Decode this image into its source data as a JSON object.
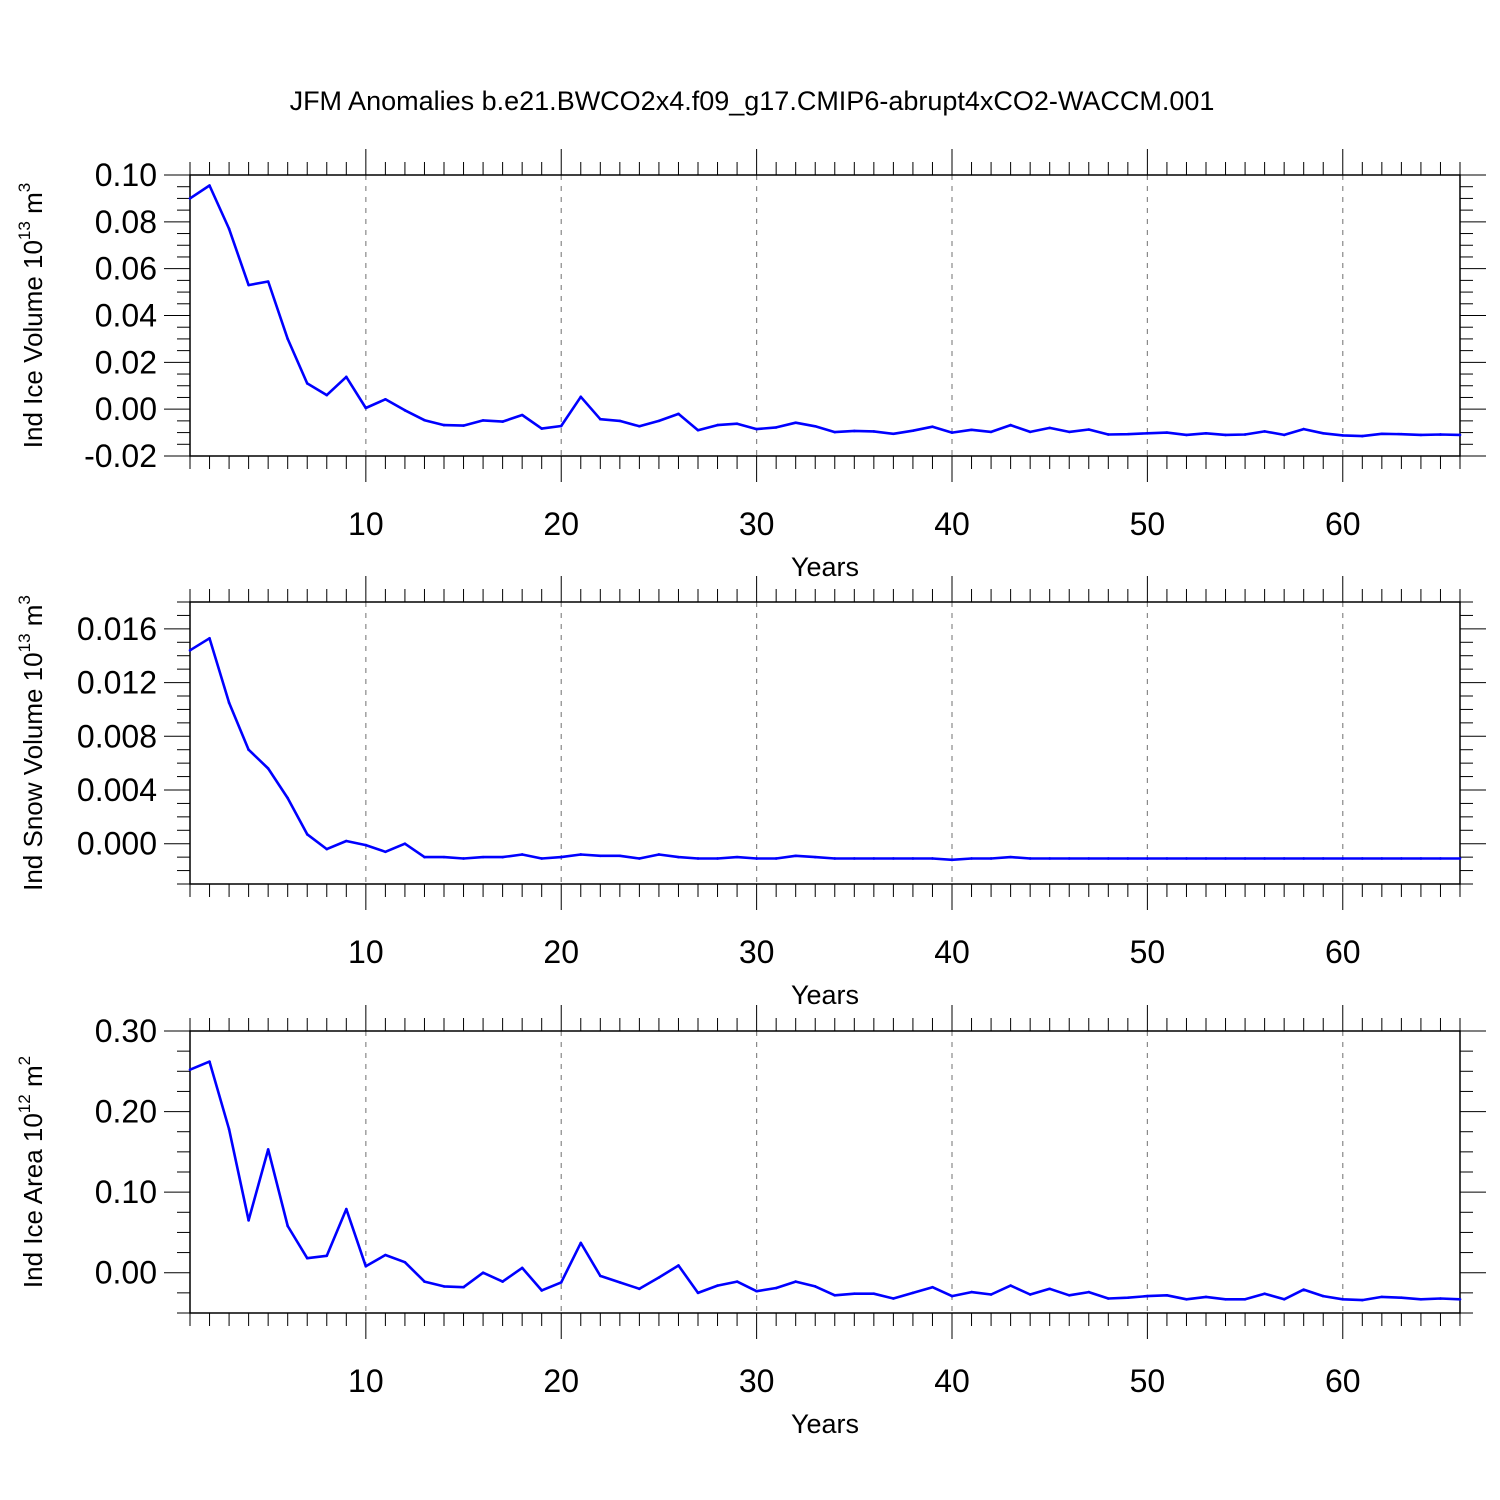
{
  "title": "JFM Anomalies b.e21.BWCO2x4.f09_g17.CMIP6-abrupt4xCO2-WACCM.001",
  "chart_data": [
    {
      "type": "line",
      "title": "",
      "xlabel": "Years",
      "ylabel": {
        "prefix": "Ind Ice Volume 10",
        "exp": "13",
        "unit": " m",
        "unit_exp": "3"
      },
      "xlim": [
        1,
        66
      ],
      "ylim": [
        -0.02,
        0.1
      ],
      "xticks": [
        10,
        20,
        30,
        40,
        50,
        60
      ],
      "yticks": [
        -0.02,
        0.0,
        0.02,
        0.04,
        0.06,
        0.08,
        0.1
      ],
      "ytick_labels": [
        "-0.02",
        "0.00",
        "0.02",
        "0.04",
        "0.06",
        "0.08",
        "0.10"
      ],
      "ytick_minor_step": 0.005,
      "grid": "vertical dashed",
      "line_color": "#0000ff",
      "x_start": 1,
      "values": [
        0.09,
        0.0955,
        0.077,
        0.053,
        0.0545,
        0.03,
        0.011,
        0.006,
        0.0138,
        0.0005,
        0.0042,
        -0.0005,
        -0.0047,
        -0.0068,
        -0.007,
        -0.0048,
        -0.0053,
        -0.0025,
        -0.0083,
        -0.0072,
        0.0053,
        -0.0043,
        -0.005,
        -0.0073,
        -0.005,
        -0.002,
        -0.009,
        -0.0068,
        -0.0062,
        -0.0085,
        -0.0078,
        -0.0058,
        -0.0073,
        -0.0098,
        -0.0093,
        -0.0095,
        -0.0105,
        -0.0092,
        -0.0075,
        -0.01,
        -0.0088,
        -0.0097,
        -0.0068,
        -0.0097,
        -0.008,
        -0.0097,
        -0.0087,
        -0.0108,
        -0.0107,
        -0.0103,
        -0.01,
        -0.011,
        -0.0103,
        -0.011,
        -0.0108,
        -0.0095,
        -0.011,
        -0.0085,
        -0.0103,
        -0.0112,
        -0.0115,
        -0.0105,
        -0.0107,
        -0.011,
        -0.0108,
        -0.011
      ]
    },
    {
      "type": "line",
      "title": "",
      "xlabel": "Years",
      "ylabel": {
        "prefix": "Ind Snow Volume 10",
        "exp": "13",
        "unit": " m",
        "unit_exp": "3"
      },
      "xlim": [
        1,
        66
      ],
      "ylim": [
        -0.003,
        0.018
      ],
      "xticks": [
        10,
        20,
        30,
        40,
        50,
        60
      ],
      "yticks": [
        0.0,
        0.004,
        0.008,
        0.012,
        0.016
      ],
      "ytick_labels": [
        "0.000",
        "0.004",
        "0.008",
        "0.012",
        "0.016"
      ],
      "ytick_minor_step": 0.001,
      "grid": "vertical dashed",
      "line_color": "#0000ff",
      "x_start": 1,
      "values": [
        0.0144,
        0.0153,
        0.0105,
        0.007,
        0.0056,
        0.0034,
        0.0007,
        -0.0004,
        0.0002,
        -0.0001,
        -0.0006,
        0.0,
        -0.001,
        -0.001,
        -0.0011,
        -0.001,
        -0.001,
        -0.0008,
        -0.0011,
        -0.001,
        -0.0008,
        -0.0009,
        -0.0009,
        -0.0011,
        -0.0008,
        -0.001,
        -0.0011,
        -0.0011,
        -0.001,
        -0.0011,
        -0.0011,
        -0.0009,
        -0.001,
        -0.0011,
        -0.0011,
        -0.0011,
        -0.0011,
        -0.0011,
        -0.0011,
        -0.0012,
        -0.0011,
        -0.0011,
        -0.001,
        -0.0011,
        -0.0011,
        -0.0011,
        -0.0011,
        -0.0011,
        -0.0011,
        -0.0011,
        -0.0011,
        -0.0011,
        -0.0011,
        -0.0011,
        -0.0011,
        -0.0011,
        -0.0011,
        -0.0011,
        -0.0011,
        -0.0011,
        -0.0011,
        -0.0011,
        -0.0011,
        -0.0011,
        -0.0011,
        -0.0011
      ]
    },
    {
      "type": "line",
      "title": "",
      "xlabel": "Years",
      "ylabel": {
        "prefix": "Ind Ice Area 10",
        "exp": "12",
        "unit": " m",
        "unit_exp": "2"
      },
      "xlim": [
        1,
        66
      ],
      "ylim": [
        -0.05,
        0.3
      ],
      "xticks": [
        10,
        20,
        30,
        40,
        50,
        60
      ],
      "yticks": [
        0.0,
        0.1,
        0.2,
        0.3
      ],
      "ytick_labels": [
        "0.00",
        "0.10",
        "0.20",
        "0.30"
      ],
      "ytick_minor_step": 0.025,
      "grid": "vertical dashed",
      "line_color": "#0000ff",
      "x_start": 1,
      "values": [
        0.252,
        0.262,
        0.178,
        0.065,
        0.153,
        0.058,
        0.018,
        0.021,
        0.079,
        0.008,
        0.022,
        0.013,
        -0.011,
        -0.017,
        -0.018,
        0.0,
        -0.011,
        0.006,
        -0.022,
        -0.012,
        0.037,
        -0.004,
        -0.012,
        -0.02,
        -0.006,
        0.009,
        -0.025,
        -0.016,
        -0.011,
        -0.023,
        -0.019,
        -0.011,
        -0.017,
        -0.028,
        -0.026,
        -0.026,
        -0.032,
        -0.025,
        -0.018,
        -0.029,
        -0.024,
        -0.027,
        -0.016,
        -0.027,
        -0.02,
        -0.028,
        -0.024,
        -0.032,
        -0.031,
        -0.029,
        -0.028,
        -0.033,
        -0.03,
        -0.033,
        -0.033,
        -0.026,
        -0.033,
        -0.021,
        -0.029,
        -0.033,
        -0.034,
        -0.03,
        -0.031,
        -0.033,
        -0.032,
        -0.033
      ]
    }
  ]
}
